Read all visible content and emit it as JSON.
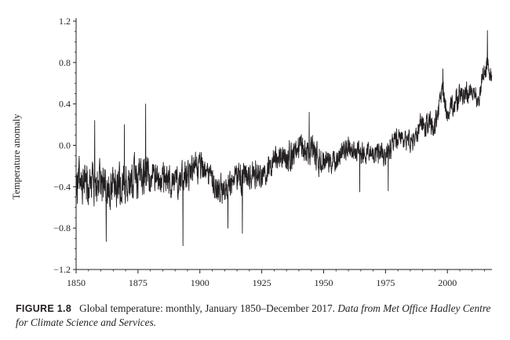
{
  "chart_data": {
    "type": "line",
    "title": "",
    "xlabel": "",
    "ylabel": "Temperature anomaly",
    "xlim": [
      1850,
      2018
    ],
    "ylim": [
      -1.2,
      1.2
    ],
    "x_ticks": [
      1850,
      1875,
      1900,
      1925,
      1950,
      1975,
      2000
    ],
    "x_tick_labels": [
      "1850",
      "1875",
      "1900",
      "1925",
      "1950",
      "1975",
      "2000"
    ],
    "y_ticks": [
      -1.2,
      -0.8,
      -0.4,
      0.0,
      0.4,
      0.8,
      1.2
    ],
    "y_tick_labels": [
      "−1.2",
      "−0.8",
      "−0.4",
      "0.0",
      "0.4",
      "0.8",
      "1.2"
    ],
    "grid": false,
    "legend": "none",
    "line_color": "#231f20",
    "x_range": [
      "January 1850",
      "December 2017"
    ],
    "series": [
      {
        "frequency": "monthly",
        "trend_points": [
          [
            1850,
            -0.35
          ],
          [
            1855,
            -0.34
          ],
          [
            1860,
            -0.37
          ],
          [
            1865,
            -0.38
          ],
          [
            1870,
            -0.35
          ],
          [
            1875,
            -0.33
          ],
          [
            1880,
            -0.26
          ],
          [
            1885,
            -0.33
          ],
          [
            1890,
            -0.36
          ],
          [
            1895,
            -0.28
          ],
          [
            1900,
            -0.21
          ],
          [
            1905,
            -0.33
          ],
          [
            1910,
            -0.45
          ],
          [
            1915,
            -0.3
          ],
          [
            1920,
            -0.27
          ],
          [
            1925,
            -0.24
          ],
          [
            1930,
            -0.15
          ],
          [
            1935,
            -0.16
          ],
          [
            1940,
            -0.01
          ],
          [
            1945,
            -0.05
          ],
          [
            1950,
            -0.16
          ],
          [
            1955,
            -0.14
          ],
          [
            1960,
            -0.03
          ],
          [
            1965,
            -0.09
          ],
          [
            1970,
            -0.05
          ],
          [
            1975,
            -0.1
          ],
          [
            1980,
            0.08
          ],
          [
            1985,
            0.02
          ],
          [
            1990,
            0.22
          ],
          [
            1995,
            0.2
          ],
          [
            1998,
            0.53
          ],
          [
            2000,
            0.31
          ],
          [
            2005,
            0.48
          ],
          [
            2010,
            0.51
          ],
          [
            2013,
            0.49
          ],
          [
            2015,
            0.74
          ],
          [
            2016,
            0.79
          ],
          [
            2017,
            0.68
          ]
        ],
        "peak_values": [
          [
            1878.1,
            0.4
          ],
          [
            1857.5,
            0.24
          ],
          [
            1869.5,
            0.2
          ],
          [
            1944.2,
            0.32
          ],
          [
            1998.2,
            0.74
          ],
          [
            2016.2,
            1.11
          ]
        ],
        "trough_values": [
          [
            1862.2,
            -0.93
          ],
          [
            1893.2,
            -0.97
          ],
          [
            1911.3,
            -0.8
          ],
          [
            1917.2,
            -0.85
          ],
          [
            1964.6,
            -0.45
          ],
          [
            1976.1,
            -0.44
          ]
        ]
      }
    ]
  },
  "caption": {
    "label": "FIGURE 1.8",
    "text": "Global temperature: monthly, January 1850–December 2017.",
    "source": "Data from Met Office Hadley Centre for Climate Science and Services."
  }
}
